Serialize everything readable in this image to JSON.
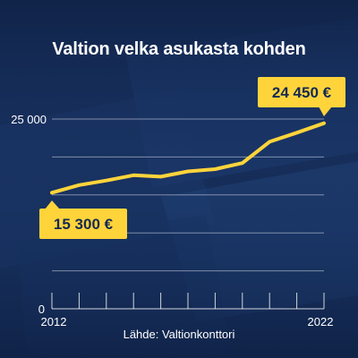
{
  "title": "Valtion velka asukasta kohden",
  "source": "Lähde: Valtionkonttori",
  "colors": {
    "background": "#142a53",
    "line": "#ffd43b",
    "callout": "#ffd43b",
    "callout_text": "#142a53",
    "text": "#ffffff"
  },
  "chart_data": {
    "type": "line",
    "title": "Valtion velka asukasta kohden",
    "x": [
      2012,
      2013,
      2014,
      2015,
      2016,
      2017,
      2018,
      2019,
      2020,
      2021,
      2022
    ],
    "series": [
      {
        "values": [
          15300,
          16300,
          16900,
          17600,
          17400,
          18100,
          18400,
          19200,
          22000,
          23200,
          24450
        ]
      }
    ],
    "xlim": [
      2012,
      2022
    ],
    "ylim": [
      0,
      25000
    ],
    "x_tick_labels": [
      "2012",
      "2022"
    ],
    "y_tick_labels": [
      "0",
      "25 000"
    ],
    "grid": true,
    "annotations": [
      {
        "x": 2012,
        "y": 15300,
        "text": "15 300 €"
      },
      {
        "x": 2022,
        "y": 24450,
        "text": "24 450 €"
      }
    ]
  }
}
